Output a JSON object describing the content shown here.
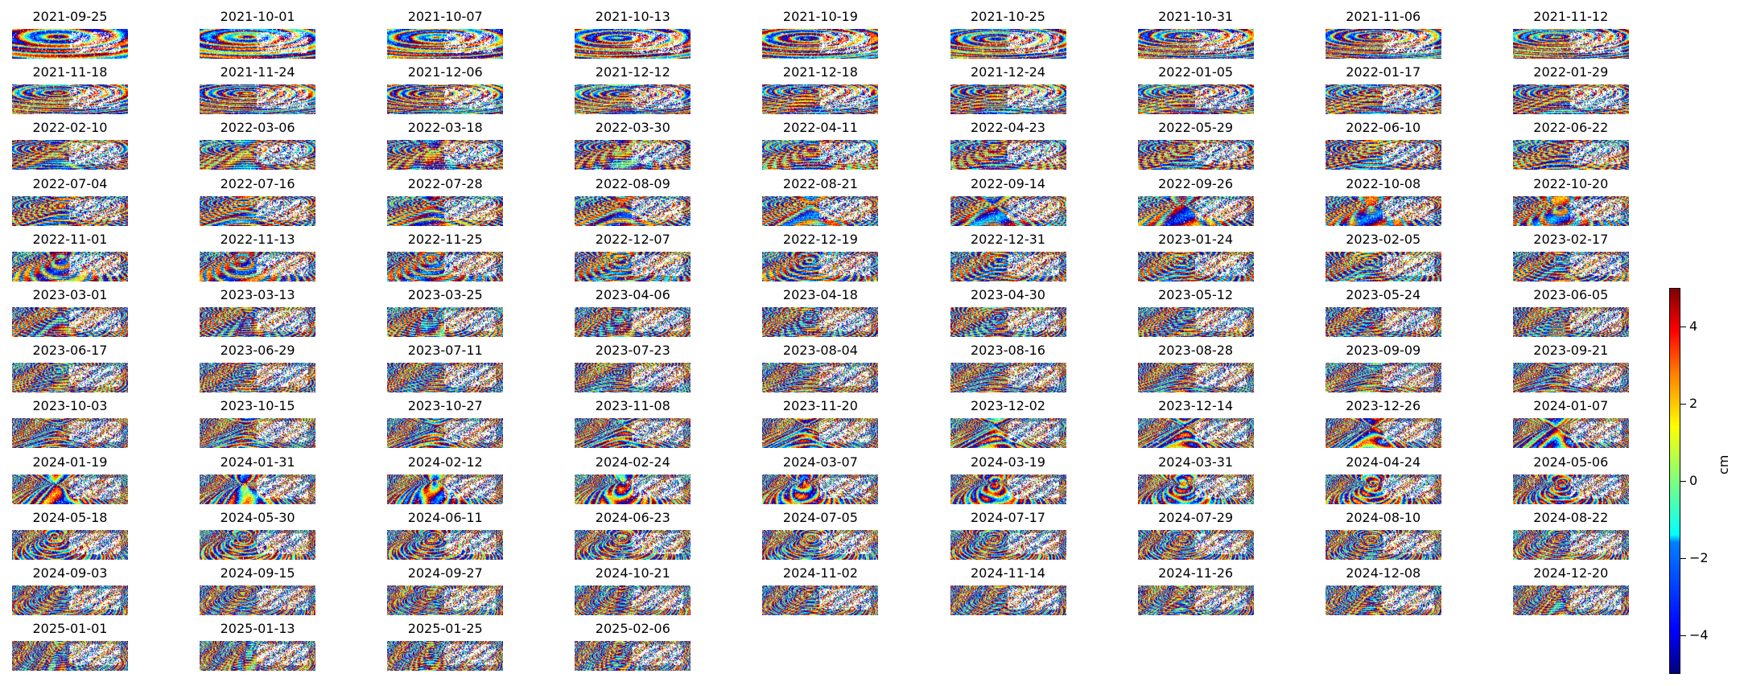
{
  "chart_data": {
    "type": "heatmap",
    "panels": [
      "2021-09-25",
      "2021-10-01",
      "2021-10-07",
      "2021-10-13",
      "2021-10-19",
      "2021-10-25",
      "2021-10-31",
      "2021-11-06",
      "2021-11-12",
      "2021-11-18",
      "2021-11-24",
      "2021-12-06",
      "2021-12-12",
      "2021-12-18",
      "2021-12-24",
      "2022-01-05",
      "2022-01-17",
      "2022-01-29",
      "2022-02-10",
      "2022-03-06",
      "2022-03-18",
      "2022-03-30",
      "2022-04-11",
      "2022-04-23",
      "2022-05-29",
      "2022-06-10",
      "2022-06-22",
      "2022-07-04",
      "2022-07-16",
      "2022-07-28",
      "2022-08-09",
      "2022-08-21",
      "2022-09-14",
      "2022-09-26",
      "2022-10-08",
      "2022-10-20",
      "2022-11-01",
      "2022-11-13",
      "2022-11-25",
      "2022-12-07",
      "2022-12-19",
      "2022-12-31",
      "2023-01-24",
      "2023-02-05",
      "2023-02-17",
      "2023-03-01",
      "2023-03-13",
      "2023-03-25",
      "2023-04-06",
      "2023-04-18",
      "2023-04-30",
      "2023-05-12",
      "2023-05-24",
      "2023-06-05",
      "2023-06-17",
      "2023-06-29",
      "2023-07-11",
      "2023-07-23",
      "2023-08-04",
      "2023-08-16",
      "2023-08-28",
      "2023-09-09",
      "2023-09-21",
      "2023-10-03",
      "2023-10-15",
      "2023-10-27",
      "2023-11-08",
      "2023-11-20",
      "2023-12-02",
      "2023-12-14",
      "2023-12-26",
      "2024-01-07",
      "2024-01-19",
      "2024-01-31",
      "2024-02-12",
      "2024-02-24",
      "2024-03-07",
      "2024-03-19",
      "2024-03-31",
      "2024-04-24",
      "2024-05-06",
      "2024-05-18",
      "2024-05-30",
      "2024-06-11",
      "2024-06-23",
      "2024-07-05",
      "2024-07-17",
      "2024-07-29",
      "2024-08-10",
      "2024-08-22",
      "2024-09-03",
      "2024-09-15",
      "2024-09-27",
      "2024-10-21",
      "2024-11-02",
      "2024-11-14",
      "2024-11-26",
      "2024-12-08",
      "2024-12-20",
      "2025-01-01",
      "2025-01-13",
      "2025-01-25",
      "2025-02-06"
    ],
    "colorbar": {
      "colormap": "jet",
      "range": [
        -5,
        5
      ],
      "ticks": [
        "−4",
        "−2",
        "0",
        "2",
        "4"
      ],
      "tick_values": [
        -4,
        -2,
        0,
        2,
        4
      ],
      "label": "cm"
    },
    "grid_columns": 9
  }
}
